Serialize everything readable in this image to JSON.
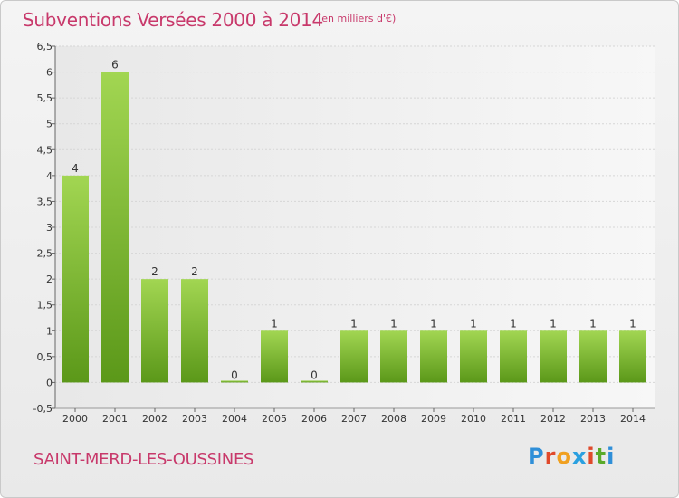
{
  "header": {
    "title": "Subventions Versées 2000 à 2014",
    "subtitle": "(en milliers d'€)"
  },
  "footer": {
    "commune": "SAINT-MERD-LES-OUSSINES",
    "logo": {
      "p": "P",
      "r": "r",
      "o": "o",
      "x": "x",
      "i1": "i",
      "t": "t",
      "i2": "i"
    }
  },
  "colors": {
    "title": "#c8396b",
    "bar_top": "#9fd44e",
    "bar_bottom": "#5d9a1a",
    "grid": "#d6d6d6"
  },
  "chart_data": {
    "type": "bar",
    "title": "Subventions Versées 2000 à 2014",
    "xlabel": "",
    "ylabel": "",
    "unit": "en milliers d'€",
    "categories": [
      "2000",
      "2001",
      "2002",
      "2003",
      "2004",
      "2005",
      "2006",
      "2007",
      "2008",
      "2009",
      "2010",
      "2011",
      "2012",
      "2013",
      "2014"
    ],
    "values": [
      4,
      6,
      2,
      2,
      0,
      1,
      0,
      1,
      1,
      1,
      1,
      1,
      1,
      1,
      1
    ],
    "ylim": [
      -0.5,
      6.5
    ],
    "yticks": [
      "-0,5",
      "0",
      "0,5",
      "1",
      "1,5",
      "2",
      "2,5",
      "3",
      "3,5",
      "4",
      "4,5",
      "5",
      "5,5",
      "6",
      "6,5"
    ],
    "grid": true
  }
}
